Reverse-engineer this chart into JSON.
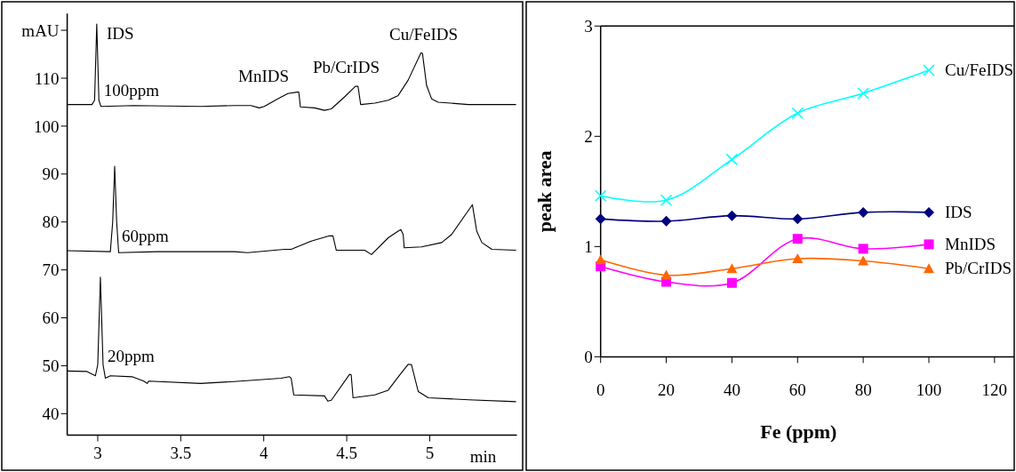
{
  "chart_data": [
    {
      "type": "line",
      "xlabel": "min",
      "xlim": [
        2.816,
        5.525
      ],
      "ylim": [
        35.5,
        123.5
      ],
      "xticks": [
        3,
        3.5,
        4,
        4.5,
        5
      ],
      "yticks": [
        40,
        50,
        60,
        70,
        80,
        90,
        100,
        110,
        {
          "value": 120,
          "label": "mAU"
        }
      ],
      "grid": false,
      "marker": "none",
      "annotations": [
        "IDS",
        "MnIDS",
        "Pb/CrIDS",
        "Cu/FeIDS"
      ],
      "series": [
        {
          "name": "100ppm",
          "color": "#000000",
          "x": [
            2.816,
            2.965,
            2.981,
            2.994,
            3.007,
            3.019,
            3.217,
            3.62,
            3.822,
            3.923,
            3.973,
            4.003,
            4.084,
            4.145,
            4.201,
            4.211,
            4.221,
            4.306,
            4.366,
            4.407,
            4.487,
            4.552,
            4.568,
            4.584,
            4.669,
            4.75,
            4.81,
            4.87,
            4.947,
            4.956,
            4.981,
            5.011,
            5.051,
            5.233,
            5.52
          ],
          "values": [
            104.5,
            104.5,
            105.4,
            121.3,
            105.4,
            104.1,
            104.3,
            104.1,
            104.3,
            104.3,
            103.8,
            104.1,
            105.7,
            106.8,
            107.1,
            107.1,
            104.0,
            103.8,
            103.3,
            103.6,
            106.1,
            108.3,
            108.3,
            104.5,
            104.8,
            105.4,
            106.4,
            109.6,
            115.3,
            115.2,
            108.5,
            105.7,
            105.0,
            104.5,
            104.5
          ]
        },
        {
          "name": "60ppm",
          "color": "#000000",
          "x": [
            2.816,
            3.076,
            3.09,
            3.102,
            3.114,
            3.126,
            3.358,
            3.822,
            3.903,
            4.124,
            4.165,
            4.286,
            4.396,
            4.417,
            4.437,
            4.608,
            4.649,
            4.75,
            4.81,
            4.826,
            4.84,
            4.846,
            4.951,
            5.072,
            5.132,
            5.257,
            5.283,
            5.314,
            5.374,
            5.52
          ],
          "values": [
            74.0,
            73.8,
            80.0,
            91.6,
            80.0,
            73.6,
            73.8,
            73.8,
            73.6,
            74.3,
            74.3,
            76.0,
            77.1,
            77.1,
            74.1,
            74.1,
            73.2,
            76.7,
            78.1,
            78.4,
            77.4,
            74.6,
            74.8,
            75.7,
            77.4,
            83.6,
            78.1,
            75.7,
            74.3,
            74.1
          ]
        },
        {
          "name": "20ppm",
          "color": "#000000",
          "x": [
            2.816,
            2.935,
            2.986,
            3.0,
            3.016,
            3.032,
            3.046,
            3.076,
            3.207,
            3.277,
            3.298,
            3.307,
            3.62,
            3.822,
            4.104,
            4.155,
            4.165,
            4.181,
            4.366,
            4.386,
            4.407,
            4.517,
            4.527,
            4.538,
            4.669,
            4.75,
            4.82,
            4.87,
            4.89,
            4.931,
            4.991,
            5.233,
            5.52
          ],
          "values": [
            48.9,
            48.8,
            47.9,
            50.2,
            68.5,
            50.2,
            47.4,
            47.9,
            47.7,
            46.8,
            46.3,
            46.8,
            46.3,
            46.7,
            47.4,
            47.7,
            47.4,
            43.9,
            43.7,
            42.6,
            42.8,
            48.2,
            48.1,
            43.3,
            43.9,
            44.9,
            48.1,
            50.3,
            50.2,
            44.6,
            43.3,
            42.9,
            42.5
          ]
        }
      ]
    },
    {
      "type": "line",
      "xlabel": "Fe (ppm)",
      "ylabel": "peak area",
      "xlim": [
        0,
        126
      ],
      "ylim": [
        0,
        3
      ],
      "xticks": [
        0,
        20,
        40,
        60,
        80,
        100,
        120
      ],
      "yticks": [
        0,
        1,
        2,
        3
      ],
      "grid": false,
      "x": [
        0,
        20,
        40,
        60,
        80,
        100
      ],
      "series": [
        {
          "name": "Cu/FeIDS",
          "color": "#00ffff",
          "marker": "cross",
          "values": [
            1.46,
            1.42,
            1.79,
            2.21,
            2.39,
            2.6
          ]
        },
        {
          "name": "IDS",
          "color": "#000080",
          "marker": "diamond",
          "values": [
            1.25,
            1.23,
            1.28,
            1.25,
            1.31,
            1.31
          ]
        },
        {
          "name": "MnIDS",
          "color": "#ff00ff",
          "marker": "square",
          "values": [
            0.82,
            0.68,
            0.67,
            1.07,
            0.98,
            1.02
          ]
        },
        {
          "name": "Pb/CrIDS",
          "color": "#ff6600",
          "marker": "triangle",
          "values": [
            0.88,
            0.74,
            0.8,
            0.89,
            0.87,
            0.8
          ]
        }
      ]
    }
  ]
}
